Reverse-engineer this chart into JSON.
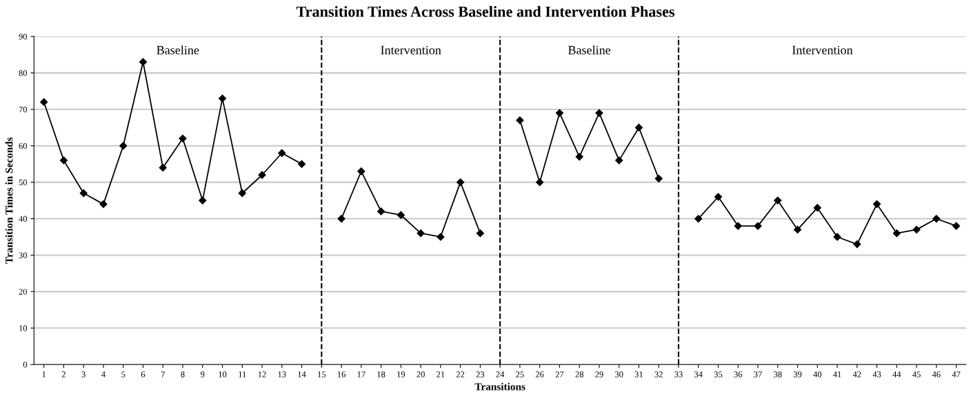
{
  "chart_data": {
    "type": "line",
    "title": "Transition Times Across Baseline and Intervention Phases",
    "xlabel": "Transitions",
    "ylabel": "Transition Times in Seconds",
    "categories": [
      "1",
      "2",
      "3",
      "4",
      "5",
      "6",
      "7",
      "8",
      "9",
      "10",
      "11",
      "12",
      "13",
      "14",
      "15",
      "16",
      "17",
      "18",
      "19",
      "20",
      "21",
      "22",
      "23",
      "24",
      "25",
      "26",
      "27",
      "28",
      "29",
      "30",
      "31",
      "32",
      "33",
      "34",
      "35",
      "36",
      "37",
      "38",
      "39",
      "40",
      "41",
      "42",
      "43",
      "44",
      "45",
      "46",
      "47"
    ],
    "series": [
      {
        "color": "#000000",
        "values": [
          72,
          56,
          47,
          44,
          60,
          83,
          54,
          62,
          45,
          73,
          47,
          52,
          58,
          55,
          null,
          40,
          53,
          42,
          41,
          36,
          35,
          50,
          36,
          null,
          67,
          50,
          69,
          57,
          69,
          56,
          65,
          51,
          null,
          40,
          46,
          38,
          38,
          45,
          37,
          43,
          35,
          33,
          44,
          36,
          37,
          40,
          38
        ]
      }
    ],
    "ylim": [
      0,
      90
    ],
    "yticks": [
      0,
      10,
      20,
      30,
      40,
      50,
      60,
      70,
      80,
      90
    ],
    "grid": "y",
    "legend": false,
    "marker": "diamond",
    "line_style": "solid",
    "ref_lines": [
      {
        "axis": "x",
        "value": "15",
        "color": "#000000",
        "line_style": "dashed"
      },
      {
        "axis": "x",
        "value": "24",
        "color": "#000000",
        "line_style": "dashed"
      },
      {
        "axis": "x",
        "value": "33",
        "color": "#000000",
        "line_style": "dashed"
      }
    ],
    "annotations": [
      "Baseline",
      "Intervention",
      "Baseline",
      "Intervention"
    ]
  }
}
